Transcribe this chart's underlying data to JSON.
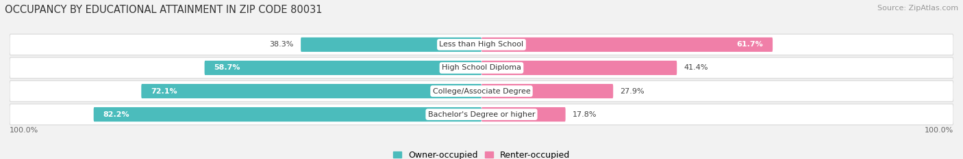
{
  "title": "OCCUPANCY BY EDUCATIONAL ATTAINMENT IN ZIP CODE 80031",
  "source": "Source: ZipAtlas.com",
  "categories": [
    "Less than High School",
    "High School Diploma",
    "College/Associate Degree",
    "Bachelor's Degree or higher"
  ],
  "owner_values": [
    38.3,
    58.7,
    72.1,
    82.2
  ],
  "renter_values": [
    61.7,
    41.4,
    27.9,
    17.8
  ],
  "owner_color": "#4BBCBC",
  "renter_color": "#F07FA8",
  "bar_height": 0.62,
  "background_color": "#f2f2f2",
  "row_bg_color": "#ffffff",
  "row_border_color": "#d8d8d8",
  "title_fontsize": 10.5,
  "source_fontsize": 8,
  "legend_fontsize": 9,
  "value_fontsize": 8,
  "category_fontsize": 8,
  "xlim_left": -100,
  "xlim_right": 100
}
